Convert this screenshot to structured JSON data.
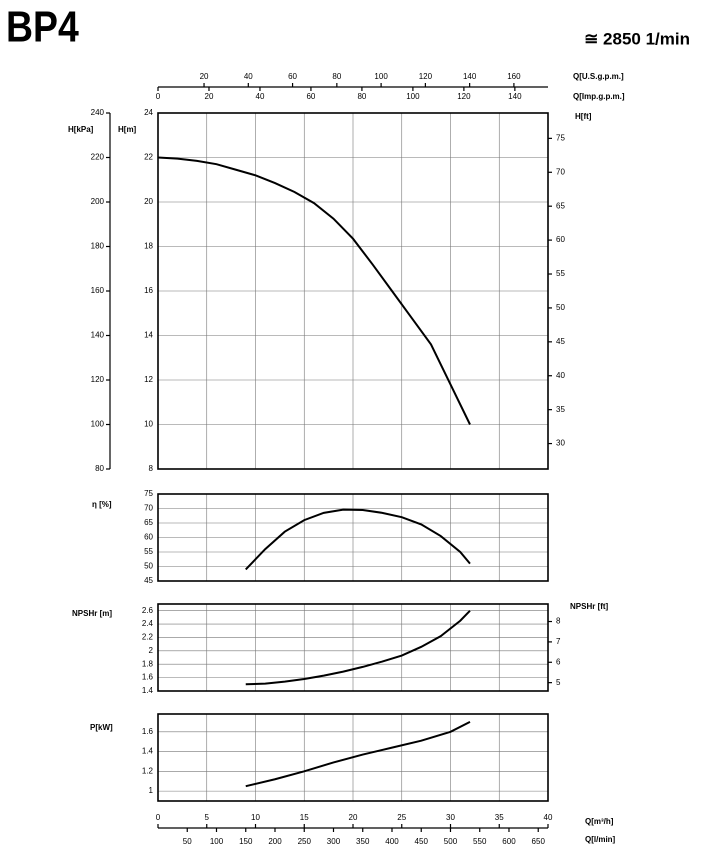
{
  "title": "BP4",
  "speed": "≅ 2850 1/min",
  "x_axes": {
    "q_m3h": {
      "label": "Q[m³/h]",
      "xlim": [
        0,
        40
      ],
      "xticks": [
        0,
        5,
        10,
        15,
        20,
        25,
        30,
        35,
        40
      ]
    },
    "q_lmin": {
      "label": "Q[l/min]",
      "xlim": [
        0,
        666.7
      ],
      "xticks": [
        50,
        100,
        150,
        200,
        250,
        300,
        350,
        400,
        450,
        500,
        550,
        600,
        650
      ]
    },
    "q_usgpm": {
      "label": "Q[U.S.g.p.m.]",
      "xlim": [
        -0.8,
        175.4
      ],
      "xticks": [
        20,
        40,
        60,
        80,
        100,
        120,
        140,
        160
      ]
    },
    "q_impgpm": {
      "label": "Q[Imp.g.p.m.]",
      "xlim": [
        0,
        153
      ],
      "xticks": [
        0,
        20,
        40,
        60,
        80,
        100,
        120,
        140
      ]
    }
  },
  "chart_data": [
    {
      "type": "line",
      "ylabel": "H[m]",
      "ylim": [
        8,
        24
      ],
      "yticks": [
        8,
        10,
        12,
        14,
        16,
        18,
        20,
        22,
        24
      ],
      "y2label": "H[ft]",
      "y2lim": [
        26.25,
        78.74
      ],
      "y2ticks": [
        30,
        35,
        40,
        45,
        50,
        55,
        60,
        65,
        70,
        75
      ],
      "y3label": "H[kPa]",
      "y3lim": [
        80,
        240
      ],
      "y3ticks": [
        80,
        100,
        120,
        140,
        160,
        180,
        200,
        220,
        240
      ],
      "color": "#000000",
      "grid": true,
      "x": [
        0,
        2,
        4,
        6,
        8,
        10,
        12,
        14,
        16,
        18,
        20,
        22,
        24,
        26,
        28,
        30,
        32
      ],
      "values": [
        22,
        21.95,
        21.85,
        21.7,
        21.45,
        21.2,
        20.85,
        20.45,
        19.95,
        19.25,
        18.35,
        17.2,
        16.0,
        14.8,
        13.6,
        11.8,
        10.0
      ]
    },
    {
      "type": "line",
      "ylabel": "η [%]",
      "ylim": [
        45,
        75
      ],
      "yticks": [
        45,
        50,
        55,
        60,
        65,
        70,
        75
      ],
      "color": "#000000",
      "grid": true,
      "x": [
        9,
        11,
        13,
        15,
        17,
        19,
        21,
        23,
        25,
        27,
        29,
        31,
        32
      ],
      "values": [
        49,
        56,
        62,
        66,
        68.5,
        69.6,
        69.5,
        68.5,
        67,
        64.5,
        60.5,
        55,
        51
      ]
    },
    {
      "type": "line",
      "ylabel": "NPSHr [m]",
      "ylim": [
        1.4,
        2.7
      ],
      "yticks": [
        1.4,
        1.6,
        1.8,
        2,
        2.2,
        2.4,
        2.6
      ],
      "y2label": "NPSHr [ft]",
      "y2lim": [
        4.59,
        8.86
      ],
      "y2ticks": [
        5,
        6,
        7,
        8
      ],
      "color": "#000000",
      "grid": true,
      "x": [
        9,
        11,
        13,
        15,
        17,
        19,
        21,
        23,
        25,
        27,
        29,
        31,
        32
      ],
      "values": [
        1.5,
        1.51,
        1.54,
        1.58,
        1.63,
        1.69,
        1.76,
        1.84,
        1.93,
        2.06,
        2.22,
        2.45,
        2.6
      ]
    },
    {
      "type": "line",
      "ylabel": "P[kW]",
      "ylim": [
        0.9,
        1.78
      ],
      "yticks": [
        1,
        1.2,
        1.4,
        1.6
      ],
      "color": "#000000",
      "grid": true,
      "x": [
        9,
        12,
        15,
        18,
        21,
        24,
        27,
        30,
        32
      ],
      "values": [
        1.05,
        1.12,
        1.2,
        1.29,
        1.37,
        1.44,
        1.51,
        1.6,
        1.7
      ]
    }
  ]
}
